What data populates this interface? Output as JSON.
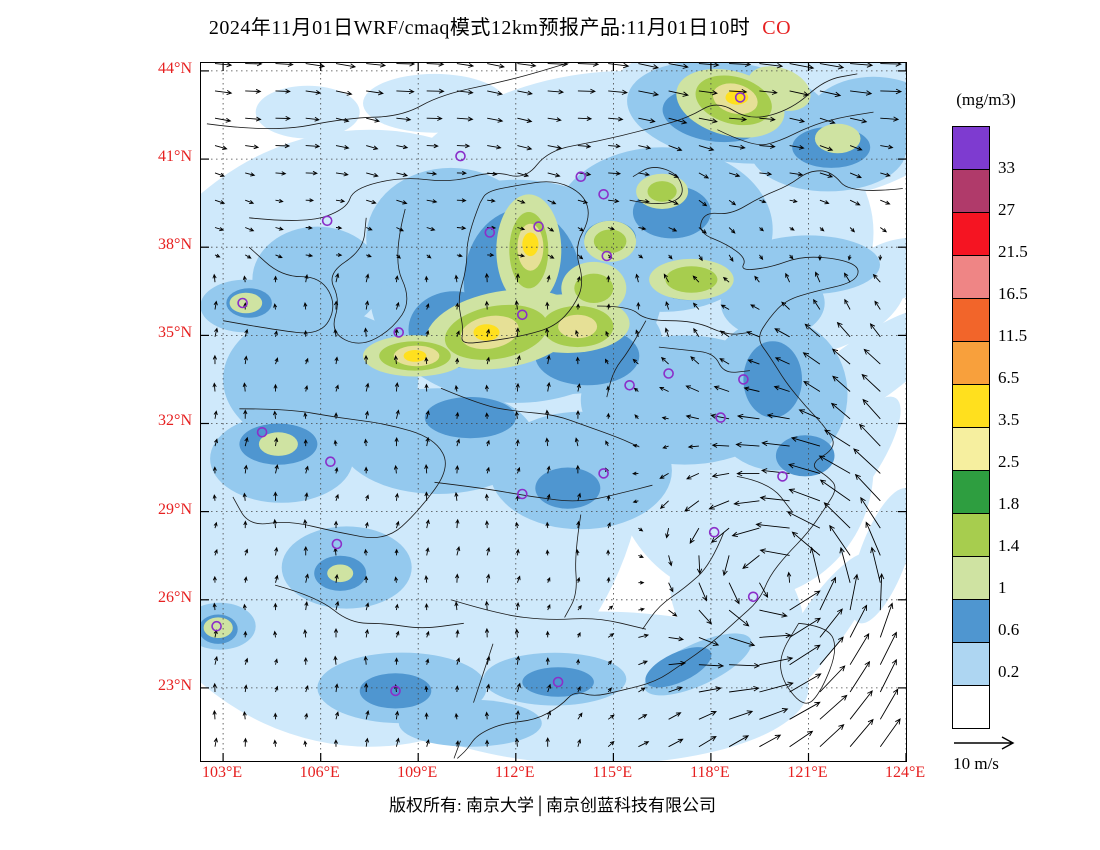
{
  "title": {
    "main": "2024年11月01日WRF/cmaq模式12km预报产品:11月01日10时",
    "species": "CO"
  },
  "footer": "版权所有: 南京大学│南京创蓝科技有限公司",
  "accent_color": "#e62020",
  "chart_data": {
    "type": "heatmap",
    "variable": "CO",
    "units": "(mg/m3)",
    "grid": "dotted",
    "x_axis": {
      "ticks": [
        103,
        106,
        109,
        112,
        115,
        118,
        121,
        124
      ],
      "labels": [
        "103°E",
        "106°E",
        "109°E",
        "112°E",
        "115°E",
        "118°E",
        "121°E",
        "124°E"
      ]
    },
    "y_axis": {
      "ticks": [
        44,
        41,
        38,
        35,
        32,
        29,
        26,
        23
      ],
      "labels": [
        "44°N",
        "41°N",
        "38°N",
        "35°N",
        "32°N",
        "29°N",
        "26°N",
        "23°N"
      ]
    },
    "colorbar": {
      "title": "(mg/m3)",
      "levels": [
        "33",
        "27",
        "21.5",
        "16.5",
        "11.5",
        "6.5",
        "3.5",
        "2.5",
        "1.8",
        "1.4",
        "1",
        "0.6",
        "0.2"
      ],
      "colors_top_to_bottom": [
        "#7e3bd0",
        "#b03a6a",
        "#f51422",
        "#ef8585",
        "#f2652a",
        "#f8a03c",
        "#ffe01e",
        "#f6ef9f",
        "#2e9e40",
        "#a7cd4e",
        "#cfe3a2",
        "#4f96d0",
        "#aed6f2",
        "#ffffff"
      ]
    },
    "wind": {
      "reference_label": "10 m/s",
      "reference_speed": 10,
      "cyclone_center_lonlat": [
        120.5,
        26.5
      ]
    },
    "station_marker_color": "#8b2fc9",
    "stations_lonlat": [
      [
        118.9,
        43.1
      ],
      [
        110.3,
        41.1
      ],
      [
        114.0,
        40.4
      ],
      [
        114.7,
        39.8
      ],
      [
        106.2,
        38.9
      ],
      [
        111.2,
        38.5
      ],
      [
        112.7,
        38.7
      ],
      [
        114.8,
        37.7
      ],
      [
        103.6,
        36.1
      ],
      [
        112.2,
        35.7
      ],
      [
        108.4,
        35.1
      ],
      [
        116.7,
        33.7
      ],
      [
        119.0,
        33.5
      ],
      [
        115.5,
        33.3
      ],
      [
        118.3,
        32.2
      ],
      [
        104.2,
        31.7
      ],
      [
        106.3,
        30.7
      ],
      [
        114.7,
        30.3
      ],
      [
        112.2,
        29.6
      ],
      [
        120.2,
        30.2
      ],
      [
        118.1,
        28.3
      ],
      [
        106.5,
        27.9
      ],
      [
        102.8,
        25.1
      ],
      [
        108.3,
        22.9
      ],
      [
        113.3,
        23.2
      ],
      [
        119.3,
        26.1
      ]
    ],
    "field_regions": [
      {
        "level": "0.2-0.6",
        "color": "#cfe9fb",
        "ellipses": [
          [
            107.5,
            31.5,
            8.5,
            10.5,
            0
          ],
          [
            115.5,
            38.5,
            7.5,
            5.5,
            0
          ],
          [
            120,
            42.5,
            5.5,
            3,
            0
          ],
          [
            119,
            30.5,
            4,
            4.5,
            0
          ],
          [
            114.5,
            23,
            6.5,
            2.6,
            0
          ],
          [
            118.8,
            25.8,
            1.8,
            2.8,
            -35
          ],
          [
            121.5,
            36,
            2.6,
            1.5,
            -20
          ],
          [
            122.8,
            33.8,
            3.2,
            1.1,
            -35
          ],
          [
            122.2,
            30.5,
            2.6,
            0.9,
            -55
          ],
          [
            123.3,
            27.5,
            2.2,
            0.8,
            -70
          ],
          [
            121.6,
            25.4,
            2.4,
            0.8,
            -55
          ],
          [
            119.6,
            23.2,
            2.6,
            0.9,
            -35
          ],
          [
            116.8,
            21.9,
            2.8,
            0.9,
            -15
          ],
          [
            123.6,
            37.2,
            1.6,
            1,
            -20
          ],
          [
            105.6,
            42.6,
            1.6,
            0.9,
            0
          ],
          [
            109.5,
            42.9,
            2.2,
            1,
            0
          ]
        ]
      },
      {
        "level": "0.6-1",
        "color": "#94c9ee",
        "ellipses": [
          [
            112,
            36.5,
            4.5,
            3.8,
            0
          ],
          [
            116.5,
            38.6,
            3.4,
            2.8,
            0
          ],
          [
            118.6,
            42.6,
            3.2,
            1.7,
            8
          ],
          [
            121.6,
            41.3,
            2.4,
            1.4,
            0
          ],
          [
            106,
            33.5,
            3,
            2.4,
            0
          ],
          [
            104.8,
            30.8,
            2.2,
            1.5,
            0
          ],
          [
            109.6,
            31.4,
            3,
            1.8,
            0
          ],
          [
            114,
            30.4,
            2.8,
            2,
            0
          ],
          [
            117.2,
            32.8,
            3.2,
            2.2,
            0
          ],
          [
            120,
            33,
            2.2,
            2.6,
            0
          ],
          [
            121,
            37.4,
            2.2,
            1,
            0
          ],
          [
            113.5,
            34.8,
            3,
            1.8,
            0
          ],
          [
            110,
            38.3,
            2.6,
            2.4,
            0
          ],
          [
            105.9,
            36.9,
            2,
            1.8,
            0
          ],
          [
            103.7,
            36,
            1.4,
            0.9,
            0
          ],
          [
            108.5,
            23,
            2.6,
            1.2,
            0
          ],
          [
            113.2,
            23.3,
            2.2,
            0.9,
            0
          ],
          [
            106.8,
            27.1,
            2,
            1.4,
            0
          ],
          [
            102.9,
            25.1,
            1.1,
            0.8,
            0
          ],
          [
            119.9,
            36.1,
            1.6,
            1.2,
            0
          ],
          [
            123,
            42.4,
            2,
            1.4,
            0
          ],
          [
            117.6,
            23.8,
            1.8,
            0.7,
            -25
          ],
          [
            110.6,
            21.8,
            2.2,
            0.8,
            0
          ]
        ]
      },
      {
        "level": "1-1.4",
        "color": "#4f96d0",
        "ellipses": [
          [
            112.2,
            36.8,
            1.8,
            2.5,
            0
          ],
          [
            110.1,
            35.2,
            1.4,
            1.3,
            0
          ],
          [
            114.2,
            34.3,
            1.6,
            1,
            0
          ],
          [
            116.8,
            39.2,
            1.2,
            0.9,
            0
          ],
          [
            118.1,
            42.5,
            1.6,
            0.9,
            8
          ],
          [
            121.7,
            41.4,
            1.2,
            0.7,
            0
          ],
          [
            104.7,
            31.3,
            1.2,
            0.7,
            0
          ],
          [
            113.6,
            29.8,
            1,
            0.7,
            0
          ],
          [
            110.6,
            32.2,
            1.4,
            0.7,
            0
          ],
          [
            119.9,
            33.5,
            0.9,
            1.3,
            0
          ],
          [
            120.9,
            30.9,
            0.9,
            0.7,
            0
          ],
          [
            103.8,
            36.1,
            0.7,
            0.5,
            0
          ],
          [
            106.6,
            26.9,
            0.8,
            0.6,
            0
          ],
          [
            108.3,
            22.9,
            1.1,
            0.6,
            0
          ],
          [
            113.3,
            23.2,
            1.1,
            0.5,
            0
          ],
          [
            117,
            23.7,
            1.1,
            0.5,
            -25
          ],
          [
            102.85,
            25,
            0.6,
            0.5,
            0
          ],
          [
            114.9,
            38.3,
            0.8,
            0.6,
            0
          ],
          [
            117.3,
            36.8,
            1,
            0.6,
            0
          ],
          [
            109,
            34.4,
            1.2,
            0.6,
            0
          ],
          [
            116.5,
            39.9,
            0.7,
            0.5,
            0
          ]
        ]
      },
      {
        "level": "1.4-1.8",
        "color": "#cfe3a2",
        "ellipses": [
          [
            111.6,
            35.2,
            2.4,
            1.3,
            -10
          ],
          [
            113.6,
            35.4,
            1.9,
            1,
            0
          ],
          [
            112.4,
            37.9,
            1,
            1.9,
            0
          ],
          [
            108.9,
            34.3,
            1.6,
            0.7,
            0
          ],
          [
            114.4,
            36.6,
            1,
            0.9,
            0
          ],
          [
            117.4,
            36.9,
            1.3,
            0.7,
            0
          ],
          [
            114.9,
            38.2,
            0.8,
            0.7,
            0
          ],
          [
            116.5,
            39.9,
            0.8,
            0.6,
            0
          ],
          [
            118.6,
            42.9,
            1.7,
            1.1,
            15
          ],
          [
            120.1,
            43.4,
            1,
            0.7,
            20
          ],
          [
            121.9,
            41.7,
            0.7,
            0.5,
            0
          ],
          [
            103.7,
            36.1,
            0.5,
            0.35,
            0
          ],
          [
            104.7,
            31.3,
            0.6,
            0.4,
            0
          ],
          [
            102.85,
            25.05,
            0.45,
            0.35,
            0
          ],
          [
            106.6,
            26.9,
            0.4,
            0.3,
            0
          ]
        ]
      },
      {
        "level": "1.8-2.5",
        "color": "#a7cd4e",
        "ellipses": [
          [
            111.4,
            35.1,
            1.6,
            0.9,
            -10
          ],
          [
            112.4,
            37.9,
            0.6,
            1.3,
            0
          ],
          [
            113.9,
            35.3,
            1.1,
            0.7,
            0
          ],
          [
            108.9,
            34.3,
            1.1,
            0.5,
            0
          ],
          [
            118.7,
            43,
            1.2,
            0.8,
            15
          ],
          [
            117.4,
            36.9,
            0.8,
            0.45,
            0
          ],
          [
            114.9,
            38.2,
            0.5,
            0.4,
            0
          ],
          [
            116.5,
            39.9,
            0.45,
            0.35,
            0
          ],
          [
            114.4,
            36.6,
            0.6,
            0.5,
            0
          ]
        ]
      },
      {
        "level": "2.5-3.5",
        "color": "#e6e096",
        "ellipses": [
          [
            111.2,
            35.1,
            0.9,
            0.55,
            -10
          ],
          [
            112.45,
            38,
            0.4,
            0.8,
            0
          ],
          [
            108.95,
            34.3,
            0.7,
            0.35,
            0
          ],
          [
            118.75,
            43.05,
            0.7,
            0.5,
            15
          ],
          [
            113.9,
            35.3,
            0.6,
            0.4,
            0
          ]
        ]
      },
      {
        "level": "3.5-6.5",
        "color": "#ffe01e",
        "ellipses": [
          [
            111.1,
            35.1,
            0.4,
            0.28,
            0
          ],
          [
            112.45,
            38.1,
            0.25,
            0.4,
            0
          ],
          [
            118.8,
            43.1,
            0.35,
            0.25,
            0
          ],
          [
            108.9,
            34.3,
            0.35,
            0.2,
            0
          ]
        ]
      }
    ]
  }
}
